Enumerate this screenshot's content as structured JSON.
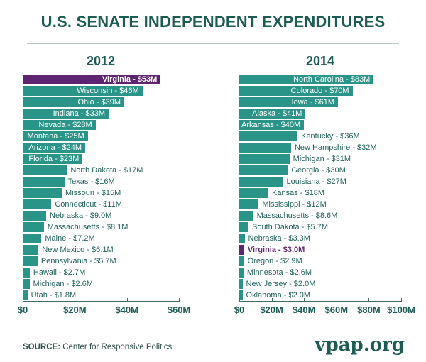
{
  "title": "U.S. SENATE INDEPENDENT EXPENDITURES",
  "source": {
    "prefix": "SOURCE:",
    "text": " Center for Responsive Politics"
  },
  "logo_text": "vpap.org",
  "colors": {
    "teal_bar": "#2b9488",
    "purple_highlight_bar": "#5e2472",
    "dark_teal_text": "#1d5c55",
    "axis_line": "#3f6a64"
  },
  "chart_data": [
    {
      "type": "bar",
      "title": "2012",
      "orientation": "horizontal",
      "unit": "millions USD",
      "xlim": [
        0,
        60
      ],
      "x_ticks": [
        {
          "value": 0,
          "label": "$0"
        },
        {
          "value": 20,
          "label": "$20M"
        },
        {
          "value": 40,
          "label": "$40M"
        },
        {
          "value": 60,
          "label": "$60M"
        }
      ],
      "bars": [
        {
          "state": "Virginia",
          "value": 53,
          "label": "Virginia - $53M",
          "highlight": true,
          "label_inside": true
        },
        {
          "state": "Wisconsin",
          "value": 46,
          "label": "Wisconsin - $46M",
          "highlight": false,
          "label_inside": true
        },
        {
          "state": "Ohio",
          "value": 39,
          "label": "Ohio - $39M",
          "highlight": false,
          "label_inside": true
        },
        {
          "state": "Indiana",
          "value": 33,
          "label": "Indiana - $33M",
          "highlight": false,
          "label_inside": true
        },
        {
          "state": "Nevada",
          "value": 28,
          "label": "Nevada - $28M",
          "highlight": false,
          "label_inside": true
        },
        {
          "state": "Montana",
          "value": 25,
          "label": "Montana - $25M",
          "highlight": false,
          "label_inside": true
        },
        {
          "state": "Arizona",
          "value": 24,
          "label": "Arizona - $24M",
          "highlight": false,
          "label_inside": true
        },
        {
          "state": "Florida",
          "value": 23,
          "label": "Florida - $23M",
          "highlight": false,
          "label_inside": true
        },
        {
          "state": "North Dakota",
          "value": 17,
          "label": "North Dakota - $17M",
          "highlight": false,
          "label_inside": false
        },
        {
          "state": "Texas",
          "value": 16,
          "label": "Texas - $16M",
          "highlight": false,
          "label_inside": false
        },
        {
          "state": "Missouri",
          "value": 15,
          "label": "Missouri - $15M",
          "highlight": false,
          "label_inside": false
        },
        {
          "state": "Connecticut",
          "value": 11,
          "label": "Connecticut - $11M",
          "highlight": false,
          "label_inside": false
        },
        {
          "state": "Nebraska",
          "value": 9.0,
          "label": "Nebraska - $9.0M",
          "highlight": false,
          "label_inside": false
        },
        {
          "state": "Massachusetts",
          "value": 8.1,
          "label": "Massachusetts - $8.1M",
          "highlight": false,
          "label_inside": false
        },
        {
          "state": "Maine",
          "value": 7.2,
          "label": "Maine - $7.2M",
          "highlight": false,
          "label_inside": false
        },
        {
          "state": "New Mexico",
          "value": 6.1,
          "label": "New Mexico - $6.1M",
          "highlight": false,
          "label_inside": false
        },
        {
          "state": "Pennsylvania",
          "value": 5.7,
          "label": "Pennsylvania - $5.7M",
          "highlight": false,
          "label_inside": false
        },
        {
          "state": "Hawaii",
          "value": 2.7,
          "label": "Hawaii - $2.7M",
          "highlight": false,
          "label_inside": false
        },
        {
          "state": "Michigan",
          "value": 2.6,
          "label": "Michigan - $2.6M",
          "highlight": false,
          "label_inside": false
        },
        {
          "state": "Utah",
          "value": 1.8,
          "label": "Utah - $1.8M",
          "highlight": false,
          "label_inside": false
        }
      ]
    },
    {
      "type": "bar",
      "title": "2014",
      "orientation": "horizontal",
      "unit": "millions USD",
      "xlim": [
        0,
        100
      ],
      "x_ticks": [
        {
          "value": 0,
          "label": "$0"
        },
        {
          "value": 20,
          "label": "$20M"
        },
        {
          "value": 40,
          "label": "$40M"
        },
        {
          "value": 60,
          "label": "$60M"
        },
        {
          "value": 80,
          "label": "$80M"
        },
        {
          "value": 100,
          "label": "$100M"
        }
      ],
      "bars": [
        {
          "state": "North Carolina",
          "value": 83,
          "label": "North Carolina - $83M",
          "highlight": false,
          "label_inside": true
        },
        {
          "state": "Colorado",
          "value": 70,
          "label": "Colorado - $70M",
          "highlight": false,
          "label_inside": true
        },
        {
          "state": "Iowa",
          "value": 61,
          "label": "Iowa - $61M",
          "highlight": false,
          "label_inside": true
        },
        {
          "state": "Alaska",
          "value": 41,
          "label": "Alaska - $41M",
          "highlight": false,
          "label_inside": true
        },
        {
          "state": "Arkansas",
          "value": 40,
          "label": "Arkansas - $40M",
          "highlight": false,
          "label_inside": true
        },
        {
          "state": "Kentucky",
          "value": 36,
          "label": "Kentucky - $36M",
          "highlight": false,
          "label_inside": false
        },
        {
          "state": "New Hampshire",
          "value": 32,
          "label": "New Hampshire - $32M",
          "highlight": false,
          "label_inside": false
        },
        {
          "state": "Michigan",
          "value": 31,
          "label": "Michigan - $31M",
          "highlight": false,
          "label_inside": false
        },
        {
          "state": "Georgia",
          "value": 30,
          "label": "Georgia - $30M",
          "highlight": false,
          "label_inside": false
        },
        {
          "state": "Louisiana",
          "value": 27,
          "label": "Louisiana - $27M",
          "highlight": false,
          "label_inside": false
        },
        {
          "state": "Kansas",
          "value": 18,
          "label": "Kansas - $18M",
          "highlight": false,
          "label_inside": false
        },
        {
          "state": "Mississippi",
          "value": 12,
          "label": "Mississippi - $12M",
          "highlight": false,
          "label_inside": false
        },
        {
          "state": "Massachusetts",
          "value": 8.6,
          "label": "Massachusetts - $8.6M",
          "highlight": false,
          "label_inside": false
        },
        {
          "state": "South Dakota",
          "value": 5.7,
          "label": "South Dakota - $5.7M",
          "highlight": false,
          "label_inside": false
        },
        {
          "state": "Nebraska",
          "value": 3.3,
          "label": "Nebraska - $3.3M",
          "highlight": false,
          "label_inside": false
        },
        {
          "state": "Virginia",
          "value": 3.0,
          "label": "Virginia - $3.0M",
          "highlight": true,
          "label_inside": false
        },
        {
          "state": "Oregon",
          "value": 2.9,
          "label": "Oregon - $2.9M",
          "highlight": false,
          "label_inside": false
        },
        {
          "state": "Minnesota",
          "value": 2.6,
          "label": "Minnesota - $2.6M",
          "highlight": false,
          "label_inside": false
        },
        {
          "state": "New Jersey",
          "value": 2.0,
          "label": "New Jersey - $2.0M",
          "highlight": false,
          "label_inside": false
        },
        {
          "state": "Oklahoma",
          "value": 2.0,
          "label": "Oklahoma - $2.0M",
          "highlight": false,
          "label_inside": false
        }
      ]
    }
  ]
}
